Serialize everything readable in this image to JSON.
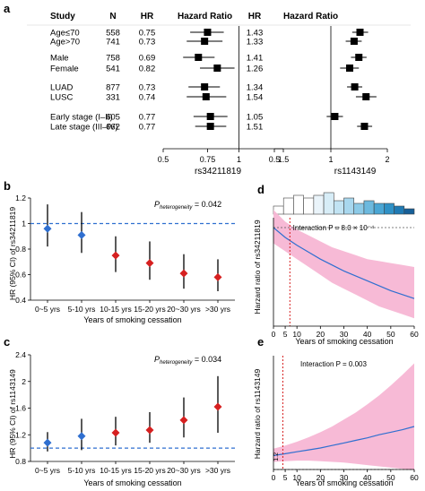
{
  "panel_labels": {
    "a": "a",
    "b": "b",
    "c": "c",
    "d": "d",
    "e": "e"
  },
  "chart_data": [
    {
      "panel": "a",
      "type": "forest",
      "headers": {
        "study": "Study",
        "n": "N",
        "hr1": "HR",
        "title1": "Hazard Ratio",
        "hr2": "HR",
        "title2": "Hazard Ratio"
      },
      "rows": [
        {
          "label": "Age≤70",
          "n": "558",
          "hr1": "0.75",
          "hr2": "1.43",
          "hr1_v": 0.75,
          "lo1": 0.64,
          "hi1": 0.87,
          "hr2_v": 1.43,
          "lo2": 1.3,
          "hi2": 1.58
        },
        {
          "label": "Age>70",
          "n": "741",
          "hr1": "0.73",
          "hr2": "1.33",
          "hr1_v": 0.73,
          "lo1": 0.62,
          "hi1": 0.86,
          "hr2_v": 1.33,
          "lo2": 1.2,
          "hi2": 1.46
        },
        {
          "label": "Male",
          "n": "758",
          "hr1": "0.69",
          "hr2": "1.41",
          "hr1_v": 0.69,
          "lo1": 0.6,
          "hi1": 0.8,
          "hr2_v": 1.41,
          "lo2": 1.28,
          "hi2": 1.55
        },
        {
          "label": "Female",
          "n": "541",
          "hr1": "0.82",
          "hr2": "1.26",
          "hr1_v": 0.82,
          "lo1": 0.7,
          "hi1": 0.96,
          "hr2_v": 1.26,
          "lo2": 1.12,
          "hi2": 1.41
        },
        {
          "label": "LUAD",
          "n": "877",
          "hr1": "0.73",
          "hr2": "1.34",
          "hr1_v": 0.73,
          "lo1": 0.63,
          "hi1": 0.84,
          "hr2_v": 1.34,
          "lo2": 1.22,
          "hi2": 1.47
        },
        {
          "label": "LUSC",
          "n": "331",
          "hr1": "0.74",
          "hr2": "1.54",
          "hr1_v": 0.74,
          "lo1": 0.62,
          "hi1": 0.89,
          "hr2_v": 1.54,
          "lo2": 1.36,
          "hi2": 1.75
        },
        {
          "label": "Early stage (I–II)",
          "n": "605",
          "hr1": "0.77",
          "hr2": "1.05",
          "hr1_v": 0.77,
          "lo1": 0.66,
          "hi1": 0.9,
          "hr2_v": 1.05,
          "lo2": 0.95,
          "hi2": 1.16
        },
        {
          "label": "Late stage (III–IV)",
          "n": "662",
          "hr1": "0.77",
          "hr2": "1.51",
          "hr1_v": 0.77,
          "lo1": 0.67,
          "hi1": 0.89,
          "hr2_v": 1.51,
          "lo2": 1.38,
          "hi2": 1.66
        }
      ],
      "xaxis1": {
        "ticks": [
          "0.5",
          "0.75",
          "1",
          "1.5"
        ],
        "tick_values": [
          0.5,
          0.75,
          1.0,
          1.5
        ],
        "xlim": [
          0.5,
          1.5
        ],
        "ref": 1.0,
        "label": "rs34211819"
      },
      "xaxis2": {
        "ticks": [
          "0.5",
          "1",
          "2"
        ],
        "tick_values": [
          0.5,
          1.0,
          2.0
        ],
        "xlim": [
          0.5,
          2.0
        ],
        "ref": 1.0,
        "label": "rs1143149"
      }
    },
    {
      "panel": "b",
      "type": "scatter",
      "categories": [
        "0~5 yrs",
        "5-10 yrs",
        "10-15 yrs",
        "15-20 yrs",
        "20~30 yrs",
        ">30 yrs"
      ],
      "values": [
        0.96,
        0.91,
        0.75,
        0.69,
        0.61,
        0.58
      ],
      "lower": [
        0.82,
        0.77,
        0.62,
        0.56,
        0.49,
        0.47
      ],
      "upper": [
        1.15,
        1.09,
        0.9,
        0.86,
        0.76,
        0.72
      ],
      "colors": [
        "#2f6fd0",
        "#2f6fd0",
        "#d62020",
        "#d62020",
        "#d62020",
        "#d62020"
      ],
      "ylim": [
        0.4,
        1.2
      ],
      "yticks": [
        "0.4",
        "0.6",
        "0.8",
        "1",
        "1.2"
      ],
      "ylabel": "HR (95% CI) of rs34211819",
      "xlabel": "Years of smoking cessation",
      "ref": 1.0,
      "p_label": "P",
      "p_sub": "heterogeneity",
      "p_value": " = 0.042"
    },
    {
      "panel": "c",
      "type": "scatter",
      "categories": [
        "0~5 yrs",
        "5-10 yrs",
        "10-15 yrs",
        "15-20 yrs",
        "20~30 yrs",
        ">30 yrs"
      ],
      "values": [
        1.08,
        1.18,
        1.23,
        1.27,
        1.42,
        1.62
      ],
      "lower": [
        0.95,
        0.97,
        1.04,
        1.08,
        1.16,
        1.23
      ],
      "upper": [
        1.24,
        1.44,
        1.47,
        1.54,
        1.76,
        2.08
      ],
      "colors": [
        "#2f6fd0",
        "#2f6fd0",
        "#d62020",
        "#d62020",
        "#d62020",
        "#d62020"
      ],
      "ylim": [
        0.8,
        2.4
      ],
      "yticks": [
        "0.8",
        "1.2",
        "1.6",
        "2",
        "2.4"
      ],
      "ylabel": "HR (95% CI) of rs1143149",
      "xlabel": "Years of smoking cessation",
      "ref": 1.0,
      "p_label": "P",
      "p_sub": "heterogeneity",
      "p_value": " = 0.034"
    },
    {
      "panel": "d",
      "type": "line",
      "x": [
        0,
        5,
        10,
        15,
        20,
        25,
        30,
        35,
        40,
        45,
        50,
        55,
        60
      ],
      "y": [
        1.0,
        0.95,
        0.91,
        0.875,
        0.84,
        0.81,
        0.78,
        0.755,
        0.73,
        0.705,
        0.68,
        0.66,
        0.64
      ],
      "lower": [
        0.92,
        0.88,
        0.84,
        0.8,
        0.76,
        0.72,
        0.69,
        0.66,
        0.63,
        0.6,
        0.58,
        0.56,
        0.54
      ],
      "upper": [
        1.09,
        1.03,
        0.99,
        0.96,
        0.93,
        0.9,
        0.88,
        0.86,
        0.84,
        0.83,
        0.82,
        0.81,
        0.8
      ],
      "xlim": [
        0,
        60
      ],
      "ylim": [
        0.5,
        1.05
      ],
      "xticks": [
        "0",
        "5",
        "10",
        "20",
        "30",
        "40",
        "50",
        "60"
      ],
      "xtick_values": [
        0,
        5,
        10,
        20,
        30,
        40,
        50,
        60
      ],
      "ylabel": "Harzard ratio of rs34211819",
      "xlabel": "Years of smoking cessation",
      "ref": 1.0,
      "vline": 7,
      "annotation": "Interaction P = 8.0 × 10⁻⁴",
      "histogram": [
        3,
        6,
        7,
        6,
        7,
        8,
        5,
        6,
        4,
        5,
        4,
        4,
        3,
        2
      ]
    },
    {
      "panel": "e",
      "type": "line",
      "x": [
        0,
        5,
        10,
        15,
        20,
        25,
        30,
        35,
        40,
        45,
        50,
        55,
        60
      ],
      "y": [
        1.22,
        1.25,
        1.28,
        1.31,
        1.34,
        1.38,
        1.42,
        1.46,
        1.5,
        1.55,
        1.59,
        1.63,
        1.68
      ],
      "lower": [
        1.12,
        1.13,
        1.14,
        1.14,
        1.13,
        1.12,
        1.11,
        1.09,
        1.07,
        1.05,
        1.03,
        1.01,
        0.99
      ],
      "upper": [
        1.33,
        1.38,
        1.44,
        1.51,
        1.59,
        1.68,
        1.79,
        1.9,
        2.03,
        2.17,
        2.33,
        2.5,
        2.68
      ],
      "xlim": [
        0,
        60
      ],
      "ylim": [
        1.0,
        2.8
      ],
      "xticks": [
        "0",
        "5",
        "10",
        "20",
        "30",
        "40",
        "50",
        "60"
      ],
      "xtick_values": [
        0,
        5,
        10,
        20,
        30,
        40,
        50,
        60
      ],
      "yticks": [
        "1.2"
      ],
      "ytick_values": [
        1.2
      ],
      "ylabel": "Harzard ratio of rs1143149",
      "xlabel": "Years of smoking cessation",
      "ref": 1.0,
      "vline": 4,
      "annotation": "Interaction P = 0.003"
    }
  ]
}
